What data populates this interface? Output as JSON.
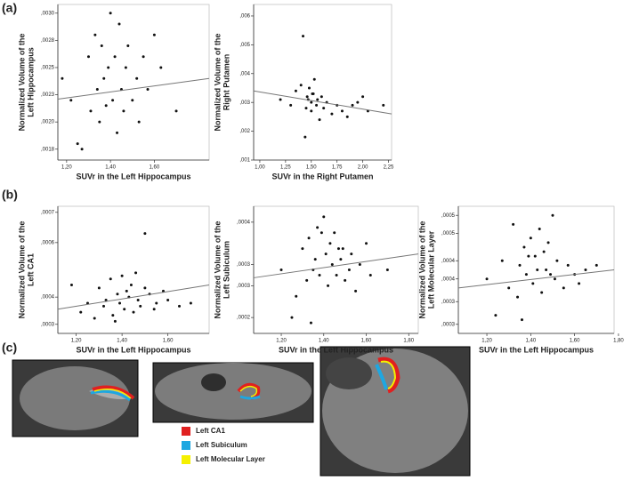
{
  "panels": [
    "(a)",
    "(b)",
    "(c)"
  ],
  "legend": [
    {
      "label": "Left CA1",
      "color": "#e02020"
    },
    {
      "label": "Left Subiculum",
      "color": "#1ea7e1"
    },
    {
      "label": "Left Molecular Layer",
      "color": "#f5f000"
    }
  ],
  "chart_data": [
    {
      "type": "scatter",
      "xlabel": "SUVr in the Left Hippocampus",
      "ylabel": [
        "Normalized Volume of the",
        "Left Hippocampus"
      ],
      "color": "#111",
      "xlim": [
        1.16,
        1.85
      ],
      "xticks": [
        {
          "value": 1.2,
          "label": "1,20"
        },
        {
          "value": 1.4,
          "label": "1,40"
        },
        {
          "value": 1.6,
          "label": "1,60"
        }
      ],
      "ylim": [
        0.00165,
        0.00308
      ],
      "yticks": [
        {
          "value": 0.003,
          "label": ",0030"
        },
        {
          "value": 0.00275,
          "label": ",0028"
        },
        {
          "value": 0.0025,
          "label": ",0025"
        },
        {
          "value": 0.00225,
          "label": ",0023"
        },
        {
          "value": 0.002,
          "label": ",0020"
        },
        {
          "value": 0.00175,
          "label": ",0018"
        }
      ],
      "x": [
        1.18,
        1.22,
        1.25,
        1.27,
        1.3,
        1.31,
        1.33,
        1.34,
        1.35,
        1.36,
        1.37,
        1.38,
        1.39,
        1.4,
        1.41,
        1.42,
        1.43,
        1.44,
        1.45,
        1.46,
        1.47,
        1.48,
        1.5,
        1.52,
        1.53,
        1.55,
        1.57,
        1.6,
        1.63,
        1.7
      ],
      "values": [
        0.0024,
        0.0022,
        0.0018,
        0.00175,
        0.0026,
        0.0021,
        0.0028,
        0.0023,
        0.002,
        0.0027,
        0.0024,
        0.00215,
        0.0025,
        0.003,
        0.0022,
        0.0026,
        0.0019,
        0.0029,
        0.0023,
        0.0021,
        0.0025,
        0.0027,
        0.0022,
        0.0024,
        0.002,
        0.0026,
        0.0023,
        0.0028,
        0.0025,
        0.0021
      ],
      "fit": {
        "x": [
          1.16,
          1.85
        ],
        "values": [
          0.00221,
          0.0024
        ]
      }
    },
    {
      "type": "scatter",
      "xlabel": "SUVr in the Right Putamen",
      "ylabel": [
        "Normalized Volume of the",
        "Right Putamen"
      ],
      "color": "#111",
      "xlim": [
        0.94,
        2.28
      ],
      "xticks": [
        {
          "value": 1.0,
          "label": "1,00"
        },
        {
          "value": 1.25,
          "label": "1,25"
        },
        {
          "value": 1.5,
          "label": "1,50"
        },
        {
          "value": 1.75,
          "label": "1,75"
        },
        {
          "value": 2.0,
          "label": "2,00"
        },
        {
          "value": 2.25,
          "label": "2,25"
        }
      ],
      "ylim": [
        0.001,
        0.0064
      ],
      "yticks": [
        {
          "value": 0.006,
          "label": ",006"
        },
        {
          "value": 0.005,
          "label": ",005"
        },
        {
          "value": 0.004,
          "label": ",004"
        },
        {
          "value": 0.003,
          "label": ",003"
        },
        {
          "value": 0.002,
          "label": ",002"
        },
        {
          "value": 0.001,
          "label": ",001"
        }
      ],
      "x": [
        1.2,
        1.3,
        1.35,
        1.4,
        1.42,
        1.45,
        1.46,
        1.48,
        1.5,
        1.5,
        1.52,
        1.53,
        1.55,
        1.56,
        1.58,
        1.6,
        1.62,
        1.65,
        1.7,
        1.75,
        1.8,
        1.85,
        1.9,
        1.95,
        2.0,
        2.05,
        1.44,
        1.51,
        2.2,
        1.47
      ],
      "values": [
        0.0031,
        0.0029,
        0.0034,
        0.0036,
        0.0053,
        0.0028,
        0.0032,
        0.0035,
        0.003,
        0.0027,
        0.0033,
        0.0038,
        0.0029,
        0.0031,
        0.0024,
        0.0032,
        0.0028,
        0.003,
        0.0026,
        0.0029,
        0.0027,
        0.0025,
        0.0029,
        0.003,
        0.0032,
        0.0027,
        0.0018,
        0.0033,
        0.0029,
        0.0031
      ],
      "fit": {
        "x": [
          0.94,
          2.28
        ],
        "values": [
          0.0034,
          0.0026
        ]
      }
    },
    {
      "type": "scatter",
      "xlabel": "SUVr in the Left Hippocampus",
      "ylabel": [
        "Normalized Volume of the",
        "Left CA1"
      ],
      "color": "#111",
      "xlim": [
        1.12,
        1.78
      ],
      "xticks": [
        {
          "value": 1.2,
          "label": "1,20"
        },
        {
          "value": 1.4,
          "label": "1,40"
        },
        {
          "value": 1.6,
          "label": "1,60"
        }
      ],
      "ylim": [
        0.0003,
        0.00072
      ],
      "yticks": [
        {
          "value": 0.0007,
          "label": ",0007"
        },
        {
          "value": 0.0006,
          "label": ",0006"
        },
        {
          "value": 0.00042,
          "label": ",0004"
        },
        {
          "value": 0.00033,
          "label": ",0003"
        }
      ],
      "x": [
        1.18,
        1.22,
        1.25,
        1.28,
        1.3,
        1.32,
        1.33,
        1.35,
        1.36,
        1.38,
        1.39,
        1.4,
        1.41,
        1.42,
        1.43,
        1.45,
        1.46,
        1.47,
        1.48,
        1.5,
        1.5,
        1.52,
        1.54,
        1.55,
        1.58,
        1.6,
        1.65,
        1.7,
        1.37,
        1.44
      ],
      "values": [
        0.00046,
        0.00037,
        0.0004,
        0.00035,
        0.00045,
        0.00039,
        0.00041,
        0.00048,
        0.00036,
        0.00043,
        0.0004,
        0.00049,
        0.00038,
        0.00044,
        0.00042,
        0.00037,
        0.0005,
        0.00041,
        0.00039,
        0.00063,
        0.00045,
        0.00043,
        0.00038,
        0.0004,
        0.00044,
        0.00041,
        0.00039,
        0.0004,
        0.00034,
        0.00046
      ],
      "fit": {
        "x": [
          1.12,
          1.78
        ],
        "values": [
          0.00038,
          0.00046
        ]
      }
    },
    {
      "type": "scatter",
      "xlabel": "SUVr in the Left Hippocampus",
      "ylabel": [
        "Normalized Volume of the",
        "Left Subiculum"
      ],
      "color": "#111",
      "xlim": [
        1.07,
        1.845
      ],
      "xticks": [
        {
          "value": 1.2,
          "label": "1,20"
        },
        {
          "value": 1.4,
          "label": "1,40"
        },
        {
          "value": 1.6,
          "label": "1,60"
        },
        {
          "value": 1.8,
          "label": "1,80"
        }
      ],
      "ylim": [
        0.00019,
        0.00043
      ],
      "yticks": [
        {
          "value": 0.0004,
          "label": ",0004"
        },
        {
          "value": 0.00032,
          "label": ",0003"
        },
        {
          "value": 0.00028,
          "label": ",0003"
        },
        {
          "value": 0.00022,
          "label": ",0002"
        }
      ],
      "x": [
        1.2,
        1.25,
        1.27,
        1.3,
        1.32,
        1.33,
        1.35,
        1.36,
        1.37,
        1.38,
        1.4,
        1.41,
        1.42,
        1.43,
        1.44,
        1.45,
        1.46,
        1.47,
        1.48,
        1.5,
        1.52,
        1.53,
        1.55,
        1.57,
        1.6,
        1.62,
        1.7,
        1.34,
        1.39,
        1.49
      ],
      "values": [
        0.00031,
        0.00022,
        0.00026,
        0.00035,
        0.00029,
        0.00037,
        0.00031,
        0.00033,
        0.00039,
        0.0003,
        0.00041,
        0.00034,
        0.00028,
        0.00036,
        0.00032,
        0.00038,
        0.0003,
        0.00035,
        0.00033,
        0.00029,
        0.00031,
        0.00034,
        0.00027,
        0.00032,
        0.00036,
        0.0003,
        0.00031,
        0.00021,
        0.00038,
        0.00035
      ],
      "fit": {
        "x": [
          1.07,
          1.845
        ],
        "values": [
          0.000295,
          0.00034
        ]
      }
    },
    {
      "type": "scatter",
      "xlabel": "SUVr in the Left Hippocampus",
      "ylabel": [
        "Normalized Volume of the",
        "Left Molecular Layer"
      ],
      "color": "#111",
      "xlim": [
        1.07,
        1.78
      ],
      "xticks": [
        {
          "value": 1.2,
          "label": "1,20"
        },
        {
          "value": 1.4,
          "label": "1,40"
        },
        {
          "value": 1.6,
          "label": "1,60"
        },
        {
          "value": 1.8,
          "label": "1,80"
        }
      ],
      "ylim": [
        0.00026,
        0.00054
      ],
      "yticks": [
        {
          "value": 0.00052,
          "label": ",0005"
        },
        {
          "value": 0.00048,
          "label": ",0005"
        },
        {
          "value": 0.00042,
          "label": ",0004"
        },
        {
          "value": 0.00038,
          "label": ",0004"
        },
        {
          "value": 0.00033,
          "label": ",0003"
        },
        {
          "value": 0.00028,
          "label": ",0003"
        }
      ],
      "x": [
        1.2,
        1.24,
        1.27,
        1.3,
        1.32,
        1.34,
        1.35,
        1.37,
        1.38,
        1.4,
        1.41,
        1.42,
        1.43,
        1.44,
        1.45,
        1.46,
        1.47,
        1.48,
        1.5,
        1.51,
        1.52,
        1.55,
        1.57,
        1.6,
        1.62,
        1.65,
        1.7,
        1.36,
        1.39,
        1.49
      ],
      "values": [
        0.00038,
        0.0003,
        0.00042,
        0.00036,
        0.0005,
        0.00034,
        0.00041,
        0.00045,
        0.00039,
        0.00047,
        0.00037,
        0.00043,
        0.0004,
        0.00049,
        0.00035,
        0.00044,
        0.0004,
        0.00046,
        0.00052,
        0.00038,
        0.00042,
        0.00036,
        0.00041,
        0.00039,
        0.00037,
        0.0004,
        0.00041,
        0.00029,
        0.00043,
        0.00039
      ],
      "fit": {
        "x": [
          1.07,
          1.78
        ],
        "values": [
          0.00036,
          0.0004
        ]
      }
    }
  ]
}
